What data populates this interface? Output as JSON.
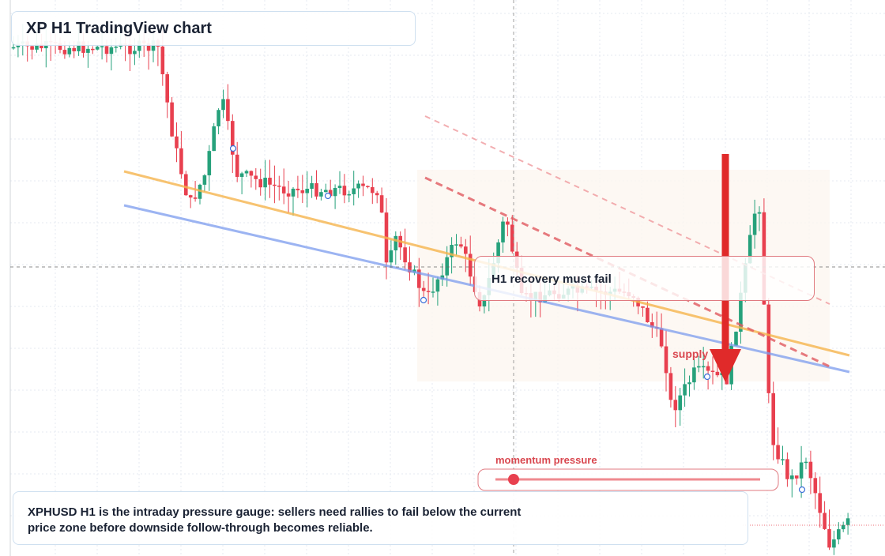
{
  "header": {
    "title": "XP H1 TradingView chart"
  },
  "annotations": {
    "callout": "H1 recovery must fail",
    "zone_label": "supply",
    "gauge_label": "momentum pressure"
  },
  "footer": {
    "text": "XPHUSD H1 is the intraday pressure gauge: sellers need rallies to fail below the current price zone before downside follow-through becomes reliable."
  }
}
